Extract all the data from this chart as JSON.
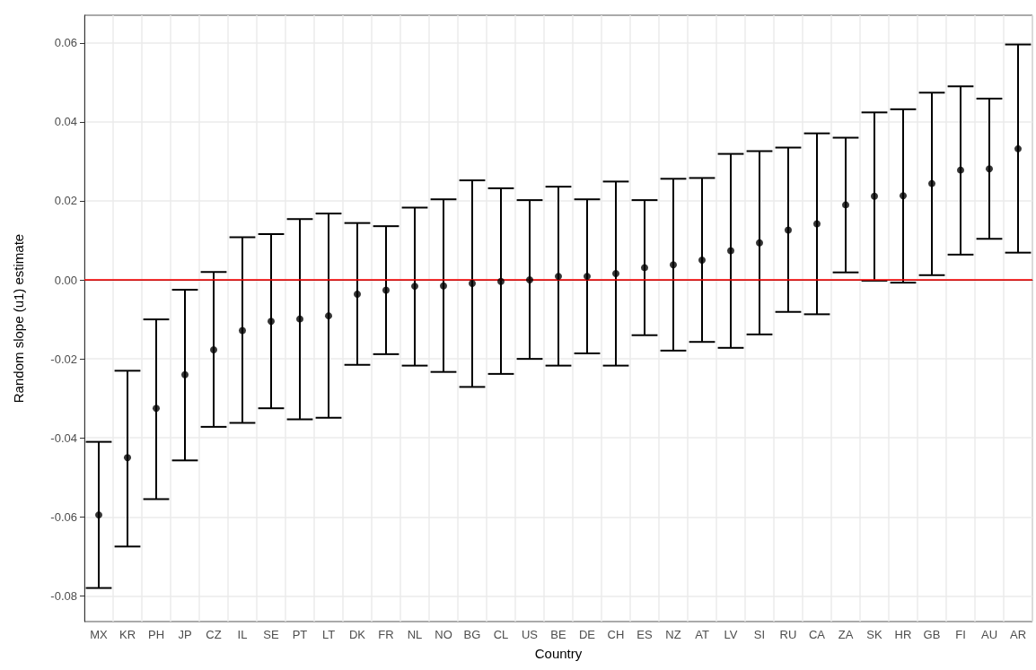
{
  "chart_data": {
    "type": "scatter",
    "xlabel": "Country",
    "ylabel": "Random slope (u1) estimate",
    "categories": [
      "MX",
      "KR",
      "PH",
      "JP",
      "CZ",
      "IL",
      "SE",
      "PT",
      "LT",
      "DK",
      "FR",
      "NL",
      "NO",
      "BG",
      "CL",
      "US",
      "BE",
      "DE",
      "CH",
      "ES",
      "NZ",
      "AT",
      "LV",
      "SI",
      "RU",
      "CA",
      "ZA",
      "SK",
      "HR",
      "GB",
      "FI",
      "AU",
      "AR"
    ],
    "series": [
      {
        "color": "#000000",
        "values": [
          -0.0595,
          -0.045,
          -0.0325,
          -0.024,
          -0.0177,
          -0.0128,
          -0.0105,
          -0.0099,
          -0.0091,
          -0.0036,
          -0.0026,
          -0.0016,
          -0.0015,
          -0.0009,
          -0.0004,
          0.0,
          0.0009,
          0.0009,
          0.0016,
          0.0031,
          0.0038,
          0.005,
          0.0074,
          0.0094,
          0.0126,
          0.0142,
          0.019,
          0.0212,
          0.0213,
          0.0244,
          0.0278,
          0.0281,
          0.0332
        ],
        "errors": [
          [
            -0.078,
            -0.041
          ],
          [
            -0.0675,
            -0.023
          ],
          [
            -0.0555,
            -0.01
          ],
          [
            -0.0457,
            -0.0025
          ],
          [
            -0.0372,
            0.002
          ],
          [
            -0.0362,
            0.0108
          ],
          [
            -0.0325,
            0.0116
          ],
          [
            -0.0353,
            0.0154
          ],
          [
            -0.0349,
            0.0168
          ],
          [
            -0.0215,
            0.0144
          ],
          [
            -0.0188,
            0.0136
          ],
          [
            -0.0217,
            0.0183
          ],
          [
            -0.0233,
            0.0204
          ],
          [
            -0.0271,
            0.0252
          ],
          [
            -0.0238,
            0.0232
          ],
          [
            -0.02,
            0.0202
          ],
          [
            -0.0217,
            0.0236
          ],
          [
            -0.0186,
            0.0204
          ],
          [
            -0.0217,
            0.0249
          ],
          [
            -0.014,
            0.0202
          ],
          [
            -0.0179,
            0.0256
          ],
          [
            -0.0157,
            0.0258
          ],
          [
            -0.0172,
            0.0319
          ],
          [
            -0.0138,
            0.0326
          ],
          [
            -0.0081,
            0.0335
          ],
          [
            -0.0087,
            0.0371
          ],
          [
            0.0019,
            0.036
          ],
          [
            -0.0002,
            0.0424
          ],
          [
            -0.0007,
            0.0432
          ],
          [
            0.0012,
            0.0474
          ],
          [
            0.0064,
            0.049
          ],
          [
            0.0104,
            0.0459
          ],
          [
            0.0069,
            0.0596
          ]
        ]
      }
    ],
    "ylim": [
      -0.0865,
      0.067
    ],
    "yticks": [
      {
        "value": -0.08,
        "label": "-0.08"
      },
      {
        "value": -0.06,
        "label": "-0.06"
      },
      {
        "value": -0.04,
        "label": "-0.04"
      },
      {
        "value": -0.02,
        "label": "-0.02"
      },
      {
        "value": 0,
        "label": "0.00"
      },
      {
        "value": 0.02,
        "label": "0.02"
      },
      {
        "value": 0.04,
        "label": "0.04"
      },
      {
        "value": 0.06,
        "label": "0.06"
      }
    ],
    "ref_lines": [
      {
        "axis": "y",
        "value": 0,
        "label": null,
        "color": "#ff0000"
      }
    ],
    "grid": true,
    "marker": "circle"
  }
}
